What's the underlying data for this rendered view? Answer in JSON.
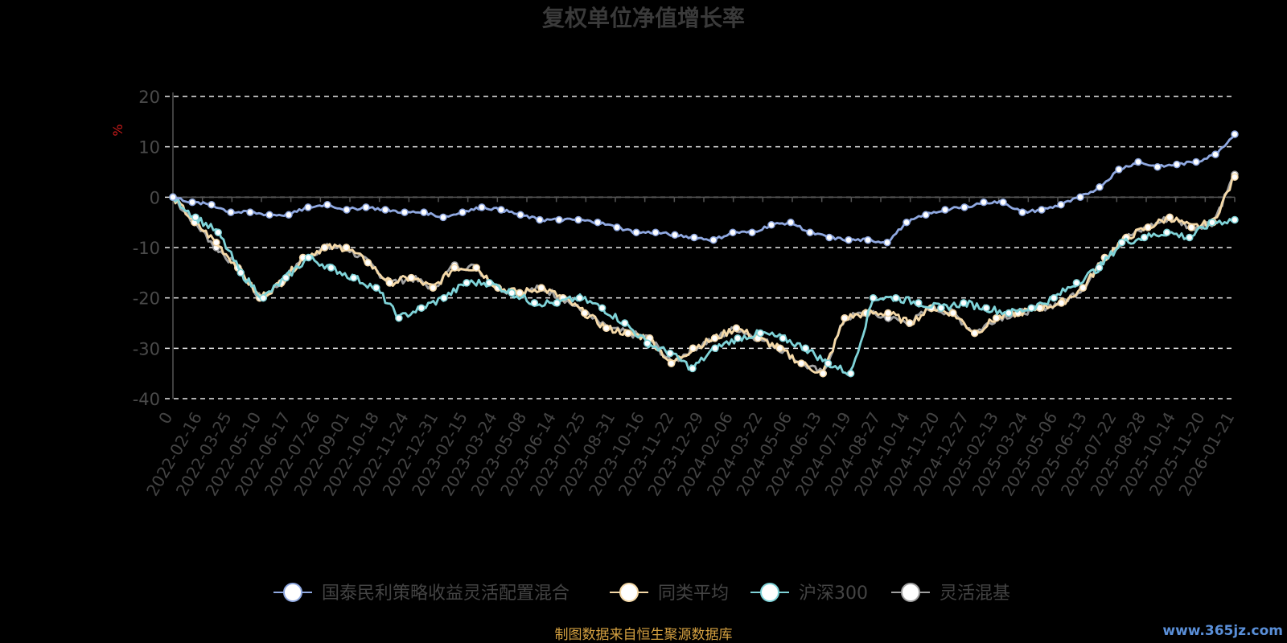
{
  "chart_data": {
    "type": "line",
    "title": "复权单位净值增长率",
    "ylabel": "%",
    "ylim": [
      -40,
      20
    ],
    "yticks": [
      20,
      10,
      0,
      -10,
      -20,
      -30,
      -40
    ],
    "x_tick_labels": [
      "0",
      "2022-02-16",
      "2022-03-25",
      "2022-05-10",
      "2022-06-17",
      "2022-07-26",
      "2022-09-01",
      "2022-10-18",
      "2022-11-24",
      "2022-12-31",
      "2023-02-15",
      "2023-03-24",
      "2023-05-08",
      "2023-06-14",
      "2023-07-25",
      "2023-08-31",
      "2023-10-16",
      "2023-11-22",
      "2023-12-29",
      "2024-02-06",
      "2024-03-22",
      "2024-05-06",
      "2024-06-13",
      "2024-07-19",
      "2024-08-27",
      "2024-10-14",
      "2024-11-20",
      "2024-12-27",
      "2025-02-13",
      "2025-03-24",
      "2025-05-06",
      "2025-06-13",
      "2025-07-22",
      "2025-08-28",
      "2025-10-14",
      "2025-11-20",
      "2026-01-21"
    ],
    "grid": true,
    "legend_position": "bottom",
    "series": [
      {
        "name": "国泰民利策略收益灵活配置混合",
        "color": "#8fa8e0",
        "values": [
          0,
          -1,
          -1.5,
          -3,
          -3,
          -3.5,
          -3.5,
          -2,
          -1.5,
          -2.5,
          -2,
          -2.5,
          -3,
          -3,
          -4,
          -3,
          -2,
          -2.5,
          -3.5,
          -4.5,
          -4.5,
          -4.5,
          -5,
          -6,
          -7,
          -7,
          -7.5,
          -8,
          -8.5,
          -7,
          -7,
          -5.5,
          -5,
          -7,
          -8,
          -8.5,
          -8.5,
          -9,
          -5,
          -3.5,
          -2.5,
          -2,
          -1,
          -1,
          -3,
          -2.5,
          -1.5,
          0,
          2,
          5.5,
          7,
          6,
          6.5,
          7,
          8.5,
          12.5
        ]
      },
      {
        "name": "同类平均",
        "color": "#f5d9a8",
        "values": [
          0,
          -5,
          -9,
          -14,
          -20,
          -17,
          -12,
          -10,
          -10,
          -13,
          -17,
          -16,
          -18,
          -14,
          -14,
          -18,
          -19,
          -18,
          -20,
          -23,
          -26,
          -27,
          -28,
          -33,
          -30,
          -28,
          -26,
          -28,
          -30,
          -33,
          -35,
          -24,
          -23,
          -23,
          -25,
          -22,
          -23,
          -27,
          -24,
          -23,
          -22,
          -21,
          -18,
          -12,
          -8,
          -6,
          -4,
          -6,
          -5,
          4
        ]
      },
      {
        "name": "沪深300",
        "color": "#7fd3d8",
        "values": [
          0,
          -4,
          -7,
          -15,
          -20,
          -16,
          -12,
          -14,
          -16,
          -18,
          -24,
          -22,
          -20,
          -17,
          -17,
          -19,
          -21,
          -21,
          -20,
          -22,
          -25,
          -29,
          -31,
          -34,
          -30,
          -28,
          -27,
          -28,
          -30,
          -33,
          -35,
          -20,
          -20,
          -21,
          -22,
          -21,
          -22,
          -23,
          -22,
          -20,
          -17,
          -14,
          -9,
          -8,
          -7,
          -8,
          -5,
          -4.5
        ]
      },
      {
        "name": "灵活混基",
        "color": "#a0a0a0",
        "values": [
          0,
          -5,
          -10,
          -14,
          -20,
          -17,
          -12,
          -10,
          -10,
          -13,
          -17,
          -16,
          -18,
          -13.5,
          -14,
          -18,
          -19,
          -18,
          -20,
          -23,
          -26,
          -27,
          -28,
          -33,
          -30,
          -28,
          -26,
          -28,
          -30,
          -33,
          -35,
          -24,
          -23,
          -24,
          -25,
          -22,
          -23,
          -27,
          -24,
          -23,
          -22,
          -21,
          -18,
          -12,
          -8,
          -6,
          -4,
          -6,
          -5,
          4.5
        ]
      }
    ]
  },
  "legend_items": [
    "国泰民利策略收益灵活配置混合",
    "同类平均",
    "沪深300",
    "灵活混基"
  ],
  "source_text": "制图数据来自恒生聚源数据库",
  "watermark": "www.365jz.com"
}
